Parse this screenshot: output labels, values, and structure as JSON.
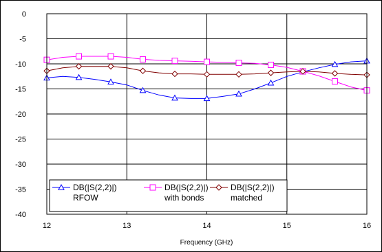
{
  "chart_data": {
    "type": "line",
    "xlabel": "Frequency (GHz)",
    "ylabel": "",
    "xlim": [
      12,
      16
    ],
    "ylim": [
      -40,
      0
    ],
    "xticks": [
      "12",
      "13",
      "14",
      "15",
      "16"
    ],
    "yticks": [
      "0",
      "-5",
      "-10",
      "-15",
      "-20",
      "-25",
      "-30",
      "-35",
      "-40"
    ],
    "grid": true,
    "legend": "bottom-left inside",
    "series": [
      {
        "name": "DB(|S(2,2)|) RFOW",
        "legend_line1": "DB(|S(2,2)|)",
        "legend_line2": "RFOW",
        "color": "#0000ff",
        "marker": "triangle",
        "x": [
          12.0,
          12.2,
          12.4,
          12.6,
          12.8,
          13.0,
          13.2,
          13.4,
          13.6,
          13.8,
          14.0,
          14.2,
          14.4,
          14.6,
          14.8,
          15.0,
          15.2,
          15.4,
          15.6,
          15.8,
          16.0
        ],
        "y": [
          -12.8,
          -12.5,
          -12.7,
          -13.1,
          -13.6,
          -14.2,
          -15.3,
          -16.2,
          -16.8,
          -16.9,
          -16.9,
          -16.5,
          -16.0,
          -15.0,
          -13.8,
          -12.5,
          -11.6,
          -10.8,
          -10.1,
          -9.6,
          -9.4
        ],
        "markers_x": [
          12.0,
          12.4,
          12.8,
          13.2,
          13.6,
          14.0,
          14.4,
          14.8,
          15.2,
          15.6,
          16.0
        ]
      },
      {
        "name": "DB(|S(2,2)|) with bonds",
        "legend_line1": "DB(|S(2,2)|)",
        "legend_line2": "with bonds",
        "color": "#ff00ff",
        "marker": "square",
        "x": [
          12.0,
          12.2,
          12.4,
          12.6,
          12.8,
          13.0,
          13.2,
          13.4,
          13.6,
          13.8,
          14.0,
          14.2,
          14.4,
          14.6,
          14.8,
          15.0,
          15.2,
          15.4,
          15.6,
          15.8,
          16.0
        ],
        "y": [
          -9.2,
          -8.7,
          -8.5,
          -8.5,
          -8.5,
          -8.7,
          -9.1,
          -9.3,
          -9.4,
          -9.5,
          -9.6,
          -9.7,
          -9.8,
          -9.9,
          -10.2,
          -10.7,
          -11.5,
          -12.4,
          -13.5,
          -14.6,
          -15.3
        ],
        "markers_x": [
          12.0,
          12.4,
          12.8,
          13.2,
          13.6,
          14.0,
          14.4,
          14.8,
          15.2,
          15.6,
          16.0
        ]
      },
      {
        "name": "DB(|S(2,2)|) matched",
        "legend_line1": "DB(|S(2,2)|)",
        "legend_line2": "matched",
        "color": "#800000",
        "marker": "diamond",
        "x": [
          12.0,
          12.2,
          12.4,
          12.6,
          12.8,
          13.0,
          13.2,
          13.4,
          13.6,
          13.8,
          14.0,
          14.2,
          14.4,
          14.6,
          14.8,
          15.0,
          15.2,
          15.4,
          15.6,
          15.8,
          16.0
        ],
        "y": [
          -11.4,
          -10.8,
          -10.5,
          -10.5,
          -10.5,
          -10.8,
          -11.4,
          -11.8,
          -12.0,
          -12.0,
          -12.1,
          -12.1,
          -12.1,
          -12.0,
          -11.8,
          -11.6,
          -11.5,
          -11.6,
          -11.9,
          -12.1,
          -12.2
        ],
        "markers_x": [
          12.0,
          12.4,
          12.8,
          13.2,
          13.6,
          14.0,
          14.4,
          14.8,
          15.2,
          15.6,
          16.0
        ]
      }
    ]
  }
}
